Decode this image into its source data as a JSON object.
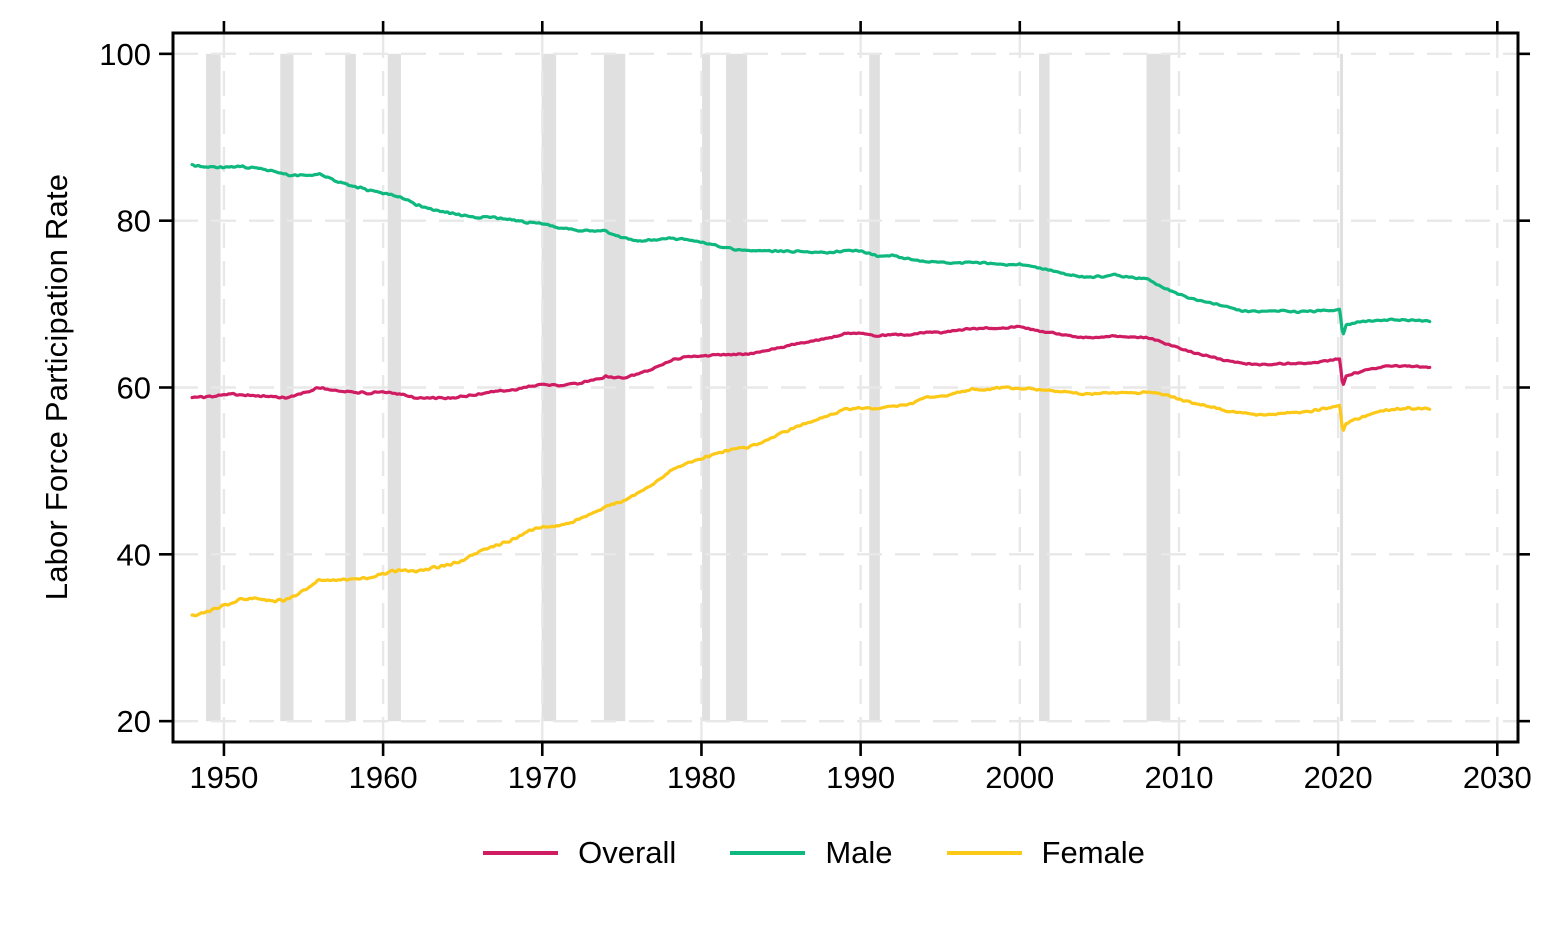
{
  "figure": {
    "background": "#ffffff"
  },
  "legend": {
    "items": [
      {
        "label": "Overall",
        "color": "#d01c62"
      },
      {
        "label": "Male",
        "color": "#0eb87e"
      },
      {
        "label": "Female",
        "color": "#fdc918"
      }
    ]
  },
  "chart_data": {
    "type": "line",
    "title": "",
    "xlabel": "",
    "ylabel": "Labor Force Participation Rate",
    "xlim": [
      1946.8,
      2031.3
    ],
    "ylim": [
      17.5,
      102.5
    ],
    "x_ticks": [
      1950,
      1960,
      1970,
      1980,
      1990,
      2000,
      2010,
      2020,
      2030
    ],
    "y_ticks": [
      20,
      40,
      60,
      80,
      100
    ],
    "grid": "dashed",
    "grid_color": "#e8e8e8",
    "axis_color": "#000000",
    "legend_position": "bottom",
    "recession_band_color": "#e0e0e0",
    "band_value_range": [
      20,
      100
    ],
    "recession_bands": [
      [
        1948.87,
        1949.79
      ],
      [
        1953.54,
        1954.37
      ],
      [
        1957.62,
        1958.29
      ],
      [
        1960.29,
        1961.12
      ],
      [
        1969.96,
        1970.87
      ],
      [
        1973.87,
        1975.21
      ],
      [
        1980.04,
        1980.54
      ],
      [
        1981.54,
        1982.87
      ],
      [
        1990.54,
        1991.21
      ],
      [
        2001.21,
        2001.87
      ],
      [
        2007.96,
        2009.46
      ],
      [
        2020.12,
        2020.29
      ]
    ],
    "series": [
      {
        "name": "Overall",
        "color": "#d01c62",
        "points": [
          [
            1948,
            58.8
          ],
          [
            1949,
            58.9
          ],
          [
            1950,
            59.2
          ],
          [
            1951,
            59.2
          ],
          [
            1952,
            59.0
          ],
          [
            1953,
            58.9
          ],
          [
            1954,
            58.8
          ],
          [
            1955,
            59.3
          ],
          [
            1956,
            60.0
          ],
          [
            1957,
            59.6
          ],
          [
            1958,
            59.5
          ],
          [
            1959,
            59.3
          ],
          [
            1960,
            59.4
          ],
          [
            1961,
            59.3
          ],
          [
            1962,
            58.8
          ],
          [
            1963,
            58.7
          ],
          [
            1964,
            58.7
          ],
          [
            1965,
            58.9
          ],
          [
            1966,
            59.2
          ],
          [
            1967,
            59.6
          ],
          [
            1968,
            59.6
          ],
          [
            1969,
            60.1
          ],
          [
            1970,
            60.4
          ],
          [
            1971,
            60.2
          ],
          [
            1972,
            60.4
          ],
          [
            1973,
            60.8
          ],
          [
            1974,
            61.3
          ],
          [
            1975,
            61.2
          ],
          [
            1976,
            61.6
          ],
          [
            1977,
            62.3
          ],
          [
            1978,
            63.2
          ],
          [
            1979,
            63.7
          ],
          [
            1980,
            63.8
          ],
          [
            1981,
            63.9
          ],
          [
            1982,
            64.0
          ],
          [
            1983,
            64.0
          ],
          [
            1984,
            64.4
          ],
          [
            1985,
            64.8
          ],
          [
            1986,
            65.3
          ],
          [
            1987,
            65.6
          ],
          [
            1988,
            65.9
          ],
          [
            1989,
            66.5
          ],
          [
            1990,
            66.5
          ],
          [
            1991,
            66.2
          ],
          [
            1992,
            66.4
          ],
          [
            1993,
            66.3
          ],
          [
            1994,
            66.6
          ],
          [
            1995,
            66.6
          ],
          [
            1996,
            66.8
          ],
          [
            1997,
            67.1
          ],
          [
            1998,
            67.1
          ],
          [
            1999,
            67.1
          ],
          [
            2000,
            67.3
          ],
          [
            2001,
            66.8
          ],
          [
            2002,
            66.6
          ],
          [
            2003,
            66.2
          ],
          [
            2004,
            66.0
          ],
          [
            2005,
            66.0
          ],
          [
            2006,
            66.2
          ],
          [
            2007,
            66.0
          ],
          [
            2008,
            66.0
          ],
          [
            2009,
            65.4
          ],
          [
            2010,
            64.7
          ],
          [
            2011,
            64.1
          ],
          [
            2012,
            63.7
          ],
          [
            2013,
            63.2
          ],
          [
            2014,
            62.9
          ],
          [
            2015,
            62.7
          ],
          [
            2016,
            62.8
          ],
          [
            2017,
            62.9
          ],
          [
            2018,
            62.9
          ],
          [
            2019,
            63.1
          ],
          [
            2020.1,
            63.4
          ],
          [
            2020.29,
            60.1
          ],
          [
            2020.5,
            61.4
          ],
          [
            2021,
            61.7
          ],
          [
            2022,
            62.2
          ],
          [
            2023,
            62.6
          ],
          [
            2024,
            62.6
          ],
          [
            2025,
            62.5
          ],
          [
            2025.8,
            62.4
          ]
        ]
      },
      {
        "name": "Male",
        "color": "#0eb87e",
        "points": [
          [
            1948,
            86.7
          ],
          [
            1949,
            86.4
          ],
          [
            1950,
            86.4
          ],
          [
            1951,
            86.5
          ],
          [
            1952,
            86.3
          ],
          [
            1953,
            86.0
          ],
          [
            1954,
            85.5
          ],
          [
            1955,
            85.4
          ],
          [
            1956,
            85.5
          ],
          [
            1957,
            84.8
          ],
          [
            1958,
            84.2
          ],
          [
            1959,
            83.7
          ],
          [
            1960,
            83.3
          ],
          [
            1961,
            82.9
          ],
          [
            1962,
            82.0
          ],
          [
            1963,
            81.4
          ],
          [
            1964,
            81.0
          ],
          [
            1965,
            80.7
          ],
          [
            1966,
            80.4
          ],
          [
            1967,
            80.4
          ],
          [
            1968,
            80.1
          ],
          [
            1969,
            79.8
          ],
          [
            1970,
            79.7
          ],
          [
            1971,
            79.1
          ],
          [
            1972,
            78.9
          ],
          [
            1973,
            78.8
          ],
          [
            1974,
            78.7
          ],
          [
            1975,
            77.9
          ],
          [
            1976,
            77.5
          ],
          [
            1977,
            77.7
          ],
          [
            1978,
            77.9
          ],
          [
            1979,
            77.8
          ],
          [
            1980,
            77.4
          ],
          [
            1981,
            77.0
          ],
          [
            1982,
            76.6
          ],
          [
            1983,
            76.4
          ],
          [
            1984,
            76.4
          ],
          [
            1985,
            76.3
          ],
          [
            1986,
            76.3
          ],
          [
            1987,
            76.2
          ],
          [
            1988,
            76.2
          ],
          [
            1989,
            76.4
          ],
          [
            1990,
            76.4
          ],
          [
            1991,
            75.8
          ],
          [
            1992,
            75.8
          ],
          [
            1993,
            75.4
          ],
          [
            1994,
            75.1
          ],
          [
            1995,
            75.0
          ],
          [
            1996,
            74.9
          ],
          [
            1997,
            75.0
          ],
          [
            1998,
            74.9
          ],
          [
            1999,
            74.7
          ],
          [
            2000,
            74.8
          ],
          [
            2001,
            74.4
          ],
          [
            2002,
            74.1
          ],
          [
            2003,
            73.5
          ],
          [
            2004,
            73.3
          ],
          [
            2005,
            73.3
          ],
          [
            2006,
            73.5
          ],
          [
            2007,
            73.2
          ],
          [
            2008,
            73.0
          ],
          [
            2009,
            72.0
          ],
          [
            2010,
            71.2
          ],
          [
            2011,
            70.5
          ],
          [
            2012,
            70.2
          ],
          [
            2013,
            69.7
          ],
          [
            2014,
            69.2
          ],
          [
            2015,
            69.1
          ],
          [
            2016,
            69.2
          ],
          [
            2017,
            69.1
          ],
          [
            2018,
            69.1
          ],
          [
            2019,
            69.2
          ],
          [
            2020.1,
            69.3
          ],
          [
            2020.29,
            66.1
          ],
          [
            2020.5,
            67.4
          ],
          [
            2021,
            67.7
          ],
          [
            2022,
            68.0
          ],
          [
            2023,
            68.1
          ],
          [
            2024,
            68.1
          ],
          [
            2025,
            68.0
          ],
          [
            2025.8,
            67.9
          ]
        ]
      },
      {
        "name": "Female",
        "color": "#fdc918",
        "points": [
          [
            1948,
            32.7
          ],
          [
            1949,
            33.1
          ],
          [
            1950,
            33.9
          ],
          [
            1951,
            34.6
          ],
          [
            1952,
            34.7
          ],
          [
            1953,
            34.4
          ],
          [
            1954,
            34.6
          ],
          [
            1955,
            35.7
          ],
          [
            1956,
            36.9
          ],
          [
            1957,
            36.9
          ],
          [
            1958,
            37.1
          ],
          [
            1959,
            37.1
          ],
          [
            1960,
            37.7
          ],
          [
            1961,
            38.1
          ],
          [
            1962,
            37.9
          ],
          [
            1963,
            38.3
          ],
          [
            1964,
            38.7
          ],
          [
            1965,
            39.3
          ],
          [
            1966,
            40.3
          ],
          [
            1967,
            41.1
          ],
          [
            1968,
            41.6
          ],
          [
            1969,
            42.7
          ],
          [
            1970,
            43.3
          ],
          [
            1971,
            43.4
          ],
          [
            1972,
            43.9
          ],
          [
            1973,
            44.7
          ],
          [
            1974,
            45.7
          ],
          [
            1975,
            46.3
          ],
          [
            1976,
            47.3
          ],
          [
            1977,
            48.4
          ],
          [
            1978,
            50.0
          ],
          [
            1979,
            50.9
          ],
          [
            1980,
            51.5
          ],
          [
            1981,
            52.1
          ],
          [
            1982,
            52.6
          ],
          [
            1983,
            52.9
          ],
          [
            1984,
            53.6
          ],
          [
            1985,
            54.5
          ],
          [
            1986,
            55.3
          ],
          [
            1987,
            56.0
          ],
          [
            1988,
            56.6
          ],
          [
            1989,
            57.4
          ],
          [
            1990,
            57.5
          ],
          [
            1991,
            57.4
          ],
          [
            1992,
            57.8
          ],
          [
            1993,
            57.9
          ],
          [
            1994,
            58.8
          ],
          [
            1995,
            58.9
          ],
          [
            1996,
            59.3
          ],
          [
            1997,
            59.8
          ],
          [
            1998,
            59.8
          ],
          [
            1999,
            60.0
          ],
          [
            2000,
            59.9
          ],
          [
            2001,
            59.8
          ],
          [
            2002,
            59.6
          ],
          [
            2003,
            59.5
          ],
          [
            2004,
            59.2
          ],
          [
            2005,
            59.3
          ],
          [
            2006,
            59.4
          ],
          [
            2007,
            59.3
          ],
          [
            2008,
            59.5
          ],
          [
            2009,
            59.2
          ],
          [
            2010,
            58.6
          ],
          [
            2011,
            58.1
          ],
          [
            2012,
            57.7
          ],
          [
            2013,
            57.2
          ],
          [
            2014,
            57.0
          ],
          [
            2015,
            56.7
          ],
          [
            2016,
            56.8
          ],
          [
            2017,
            57.0
          ],
          [
            2018,
            57.1
          ],
          [
            2019,
            57.4
          ],
          [
            2020.1,
            57.8
          ],
          [
            2020.29,
            54.6
          ],
          [
            2020.5,
            55.7
          ],
          [
            2021,
            56.1
          ],
          [
            2022,
            56.8
          ],
          [
            2023,
            57.3
          ],
          [
            2024,
            57.5
          ],
          [
            2025,
            57.5
          ],
          [
            2025.8,
            57.4
          ]
        ]
      }
    ]
  }
}
